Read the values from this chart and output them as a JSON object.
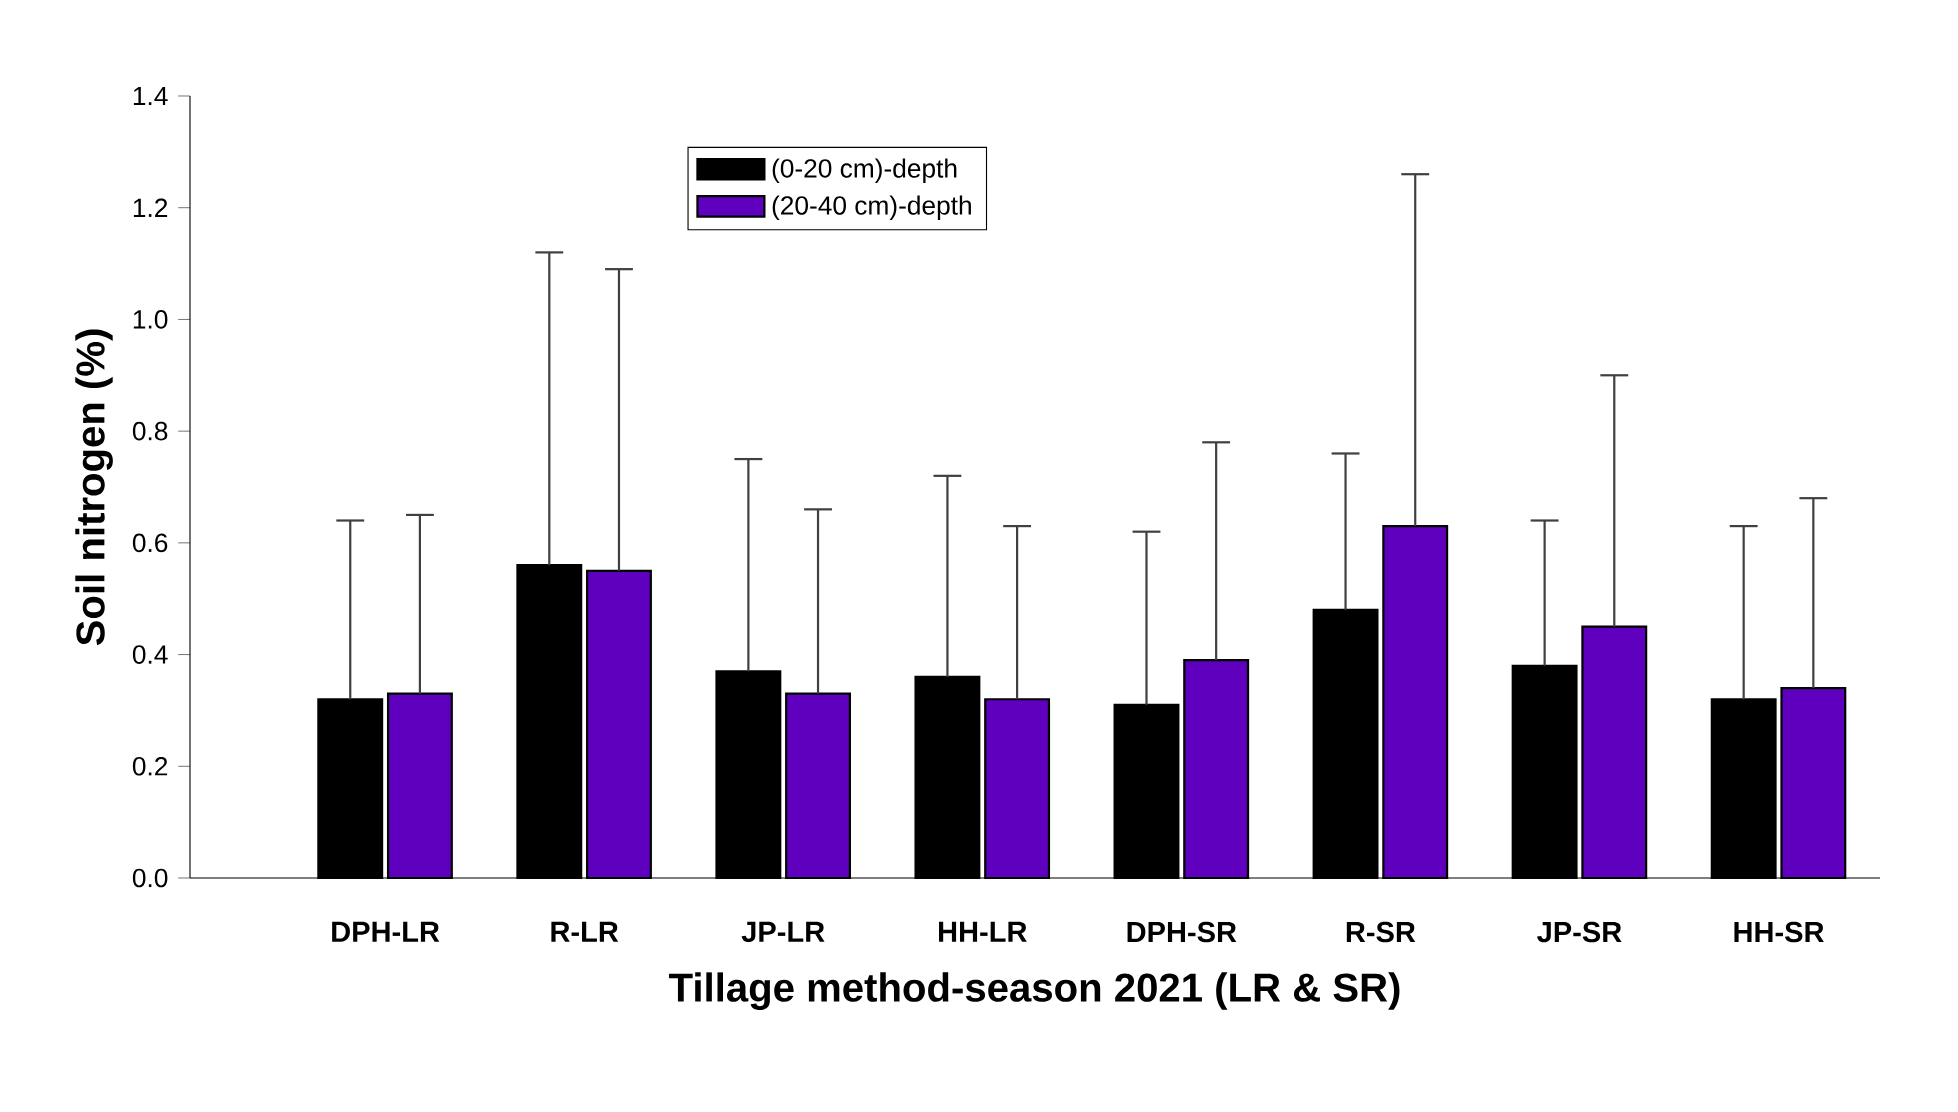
{
  "chart_data": {
    "type": "bar",
    "xlabel": "Tillage method-season 2021 (LR & SR)",
    "ylabel": "Soil nitrogen (%)",
    "categories": [
      "DPH-LR",
      "R-LR",
      "JP-LR",
      "HH-LR",
      "DPH-SR",
      "R-SR",
      "JP-SR",
      "HH-SR"
    ],
    "series": [
      {
        "name": "(0-20 cm)-depth",
        "color": "#000000",
        "values": [
          0.32,
          0.56,
          0.37,
          0.36,
          0.31,
          0.48,
          0.38,
          0.32
        ],
        "errors": [
          [
            0.32,
            0.64
          ],
          [
            0.56,
            1.12
          ],
          [
            0.37,
            0.75
          ],
          [
            0.36,
            0.72
          ],
          [
            0.31,
            0.62
          ],
          [
            0.48,
            0.76
          ],
          [
            0.38,
            0.64
          ],
          [
            0.32,
            0.63
          ]
        ]
      },
      {
        "name": "(20-40 cm)-depth",
        "color": "#5f00bf",
        "values": [
          0.33,
          0.55,
          0.33,
          0.32,
          0.39,
          0.63,
          0.45,
          0.34
        ],
        "errors": [
          [
            0.33,
            0.65
          ],
          [
            0.55,
            1.09
          ],
          [
            0.33,
            0.66
          ],
          [
            0.32,
            0.63
          ],
          [
            0.39,
            0.78
          ],
          [
            0.63,
            1.26
          ],
          [
            0.45,
            0.9
          ],
          [
            0.34,
            0.68
          ]
        ]
      }
    ],
    "ylim": [
      0,
      1.4
    ],
    "yticks": [
      {
        "value": 0,
        "label": "0.0"
      },
      {
        "value": 0.2,
        "label": "0.2"
      },
      {
        "value": 0.4,
        "label": "0.4"
      },
      {
        "value": 0.6,
        "label": "0.6"
      },
      {
        "value": 0.8,
        "label": "0.8"
      },
      {
        "value": 1.0,
        "label": "1.0"
      },
      {
        "value": 1.2,
        "label": "1.2"
      },
      {
        "value": 1.4,
        "label": "1.4"
      }
    ],
    "legend": "top",
    "grid": false
  }
}
